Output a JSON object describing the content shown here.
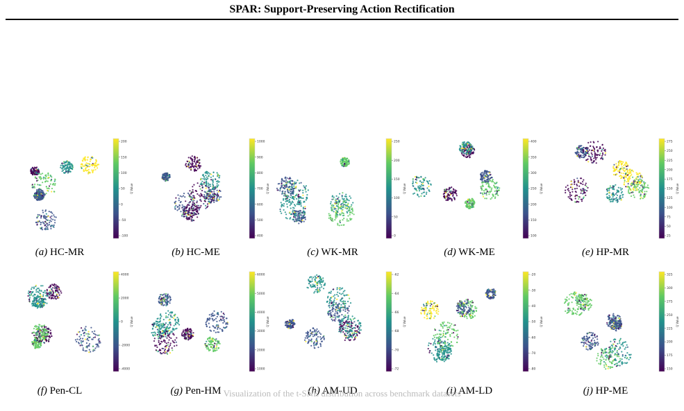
{
  "header": {
    "running_title": "SPAR: Support-Preserving Action Rectification"
  },
  "colorbar_label": "Q Value",
  "palette": [
    "#440154",
    "#3b528b",
    "#21918c",
    "#5ec962",
    "#fde725"
  ],
  "panels": [
    {
      "label": "(a)",
      "name": "HC-MR",
      "ticks": [
        "200",
        "150",
        "100",
        "50",
        "0",
        "-50",
        "-100"
      ]
    },
    {
      "label": "(b)",
      "name": "HC-ME",
      "ticks": [
        "1000",
        "900",
        "800",
        "700",
        "600",
        "500",
        "400"
      ]
    },
    {
      "label": "(c)",
      "name": "WK-MR",
      "ticks": [
        "250",
        "200",
        "150",
        "100",
        "50",
        "0"
      ]
    },
    {
      "label": "(d)",
      "name": "WK-ME",
      "ticks": [
        "400",
        "350",
        "300",
        "250",
        "200",
        "150",
        "100"
      ]
    },
    {
      "label": "(e)",
      "name": "HP-MR",
      "ticks": [
        "275",
        "250",
        "225",
        "200",
        "175",
        "150",
        "125",
        "100",
        "75",
        "50",
        "25"
      ]
    },
    {
      "label": "(f)",
      "name": "Pen-CL",
      "ticks": [
        "4000",
        "2000",
        "0",
        "-2000",
        "-4000"
      ]
    },
    {
      "label": "(g)",
      "name": "Pen-HM",
      "ticks": [
        "6000",
        "5000",
        "4000",
        "3000",
        "2000",
        "1000"
      ]
    },
    {
      "label": "(h)",
      "name": "AM-UD",
      "ticks": [
        "-62",
        "-64",
        "-66",
        "-68",
        "-70",
        "-72"
      ]
    },
    {
      "label": "(i)",
      "name": "AM-LD",
      "ticks": [
        "-20",
        "-30",
        "-40",
        "-50",
        "-60",
        "-70",
        "-80"
      ]
    },
    {
      "label": "(j)",
      "name": "HP-ME",
      "ticks": [
        "325",
        "300",
        "275",
        "250",
        "225",
        "200",
        "175",
        "150"
      ]
    }
  ],
  "figure_caption": "Visualization of the t-SNE distribution across benchmark datasets"
}
